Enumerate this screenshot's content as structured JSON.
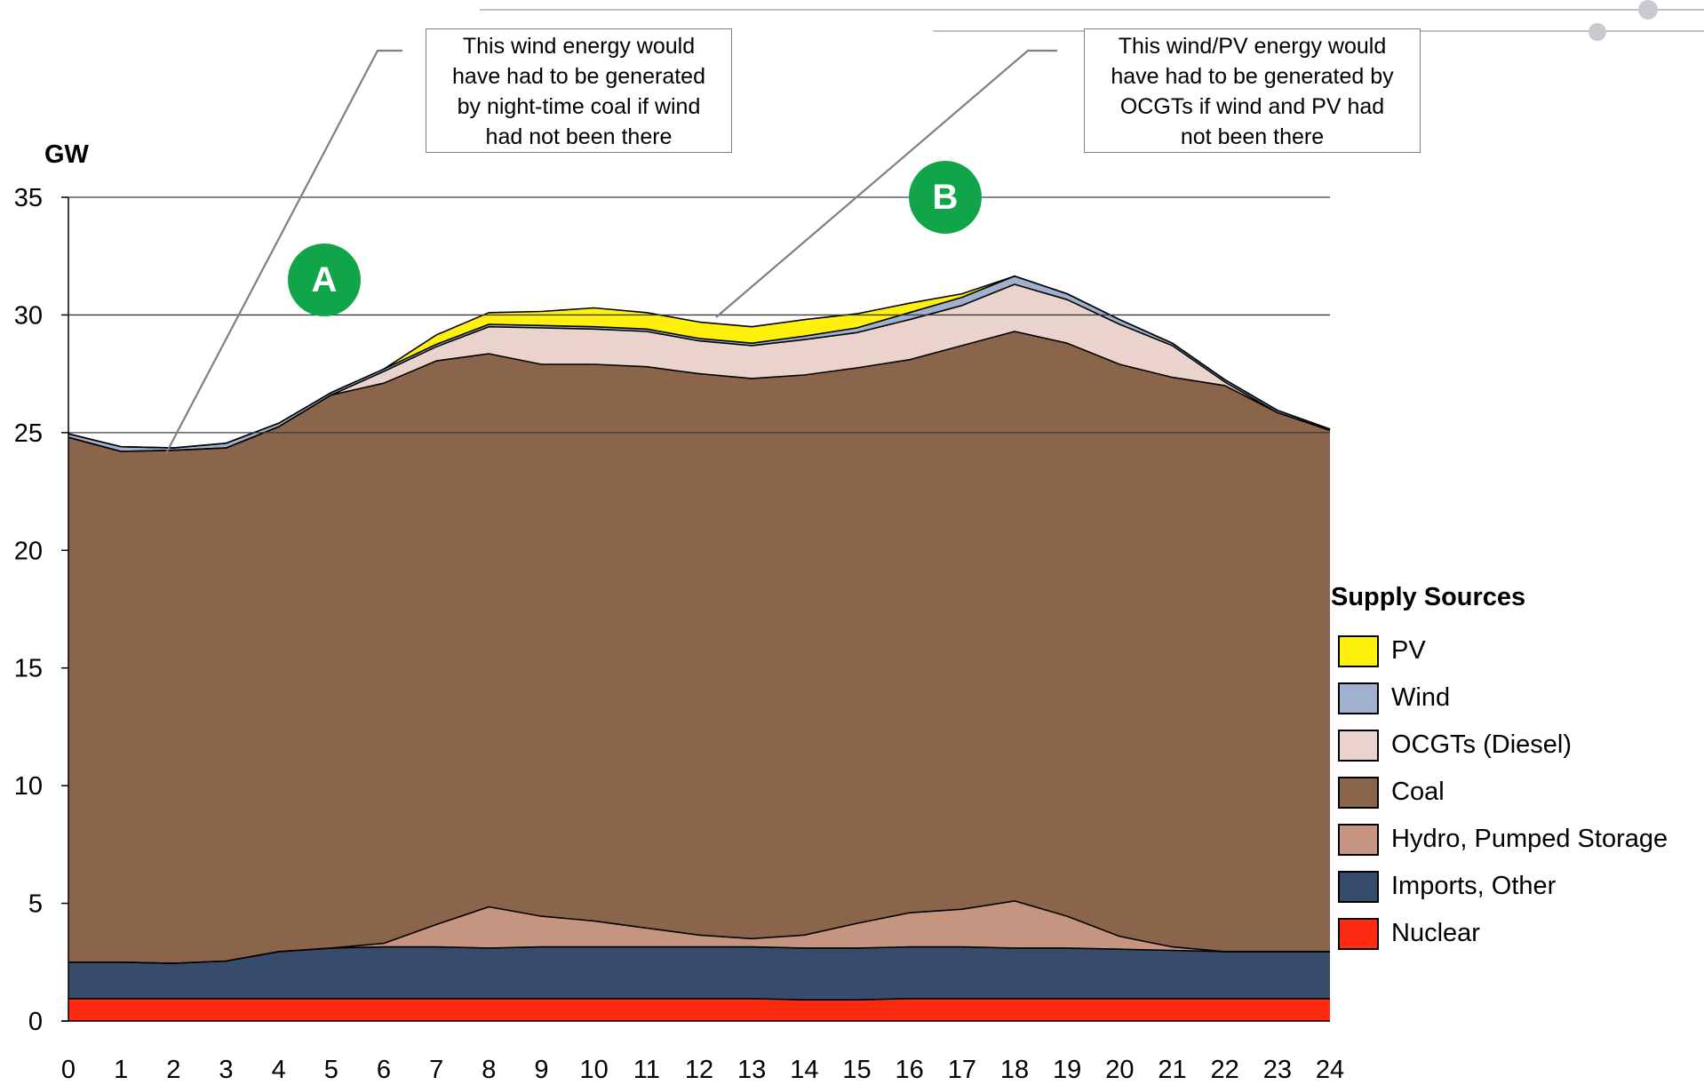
{
  "chart_data": {
    "type": "area",
    "stacked": true,
    "y_unit_label": "GW",
    "xlabel": "",
    "ylabel": "",
    "x": [
      0,
      1,
      2,
      3,
      4,
      5,
      6,
      7,
      8,
      9,
      10,
      11,
      12,
      13,
      14,
      15,
      16,
      17,
      18,
      19,
      20,
      21,
      22,
      23,
      24
    ],
    "x_tick_labels": [
      "0",
      "1",
      "2",
      "3",
      "4",
      "5",
      "6",
      "7",
      "8",
      "9",
      "10",
      "11",
      "12",
      "13",
      "14",
      "15",
      "16",
      "17",
      "18",
      "19",
      "20",
      "21",
      "22",
      "23",
      "24"
    ],
    "ylim": [
      0,
      35
    ],
    "y_ticks": [
      0,
      5,
      10,
      15,
      20,
      25,
      30,
      35
    ],
    "y_tick_labels": [
      "0",
      "5",
      "10",
      "15",
      "20",
      "25",
      "30",
      "35"
    ],
    "grid": "horizontal at 25, 30, 35",
    "legend_title": "Supply Sources",
    "legend_position": "right",
    "series": [
      {
        "name": "Nuclear",
        "color": "#ff2a12",
        "values": [
          0.95,
          0.95,
          0.95,
          0.95,
          0.95,
          0.95,
          0.95,
          0.95,
          0.95,
          0.95,
          0.95,
          0.95,
          0.95,
          0.95,
          0.9,
          0.9,
          0.95,
          0.95,
          0.95,
          0.95,
          0.95,
          0.95,
          0.95,
          0.95,
          0.95
        ]
      },
      {
        "name": "Imports, Other",
        "color": "#374c6b",
        "values": [
          1.55,
          1.55,
          1.5,
          1.6,
          2.0,
          2.15,
          2.2,
          2.2,
          2.15,
          2.2,
          2.2,
          2.2,
          2.2,
          2.2,
          2.2,
          2.2,
          2.2,
          2.2,
          2.15,
          2.15,
          2.1,
          2.05,
          2.0,
          2.0,
          2.0
        ]
      },
      {
        "name": "Hydro, Pumped Storage",
        "color": "#c69582",
        "values": [
          0,
          0,
          0,
          0,
          0,
          0,
          0.15,
          0.95,
          1.75,
          1.3,
          1.1,
          0.8,
          0.5,
          0.35,
          0.55,
          1.05,
          1.45,
          1.6,
          2.0,
          1.35,
          0.55,
          0.15,
          0,
          0,
          0
        ]
      },
      {
        "name": "Coal",
        "color": "#8b654b",
        "values": [
          22.3,
          21.7,
          21.8,
          21.8,
          22.3,
          23.5,
          23.8,
          23.95,
          23.5,
          23.45,
          23.65,
          23.85,
          23.85,
          23.8,
          23.8,
          23.6,
          23.5,
          23.95,
          24.2,
          24.35,
          24.3,
          24.2,
          24.05,
          22.9,
          22.15
        ]
      },
      {
        "name": "OCGTs (Diesel)",
        "color": "#ead3cc",
        "values": [
          0,
          0,
          0,
          0,
          0,
          0,
          0.5,
          0.6,
          1.15,
          1.55,
          1.5,
          1.5,
          1.4,
          1.4,
          1.5,
          1.5,
          1.7,
          1.7,
          2.0,
          1.85,
          1.7,
          1.35,
          0.15,
          0,
          0
        ]
      },
      {
        "name": "Wind",
        "color": "#9fb1ce",
        "values": [
          0.15,
          0.2,
          0.1,
          0.2,
          0.15,
          0.1,
          0.1,
          0.1,
          0.1,
          0.1,
          0.1,
          0.1,
          0.1,
          0.1,
          0.15,
          0.2,
          0.3,
          0.35,
          0.35,
          0.25,
          0.2,
          0.1,
          0.1,
          0.1,
          0.05
        ]
      },
      {
        "name": "PV",
        "color": "#fff10c",
        "values": [
          0,
          0,
          0,
          0,
          0,
          0,
          0,
          0.4,
          0.5,
          0.6,
          0.8,
          0.7,
          0.7,
          0.7,
          0.7,
          0.6,
          0.4,
          0.15,
          0,
          0,
          0,
          0,
          0,
          0,
          0
        ]
      }
    ],
    "annotations": [
      {
        "label": "A",
        "color": "#11a54a"
      },
      {
        "label": "B",
        "color": "#11a54a"
      }
    ]
  },
  "callouts": [
    {
      "lines": [
        "This wind energy would",
        "have had to be generated",
        "by night-time coal if wind",
        "had not been there"
      ]
    },
    {
      "lines": [
        "This wind/PV energy would",
        "have had to be generated by",
        "OCGTs if wind and PV had",
        "not been there"
      ]
    }
  ],
  "legend_items": [
    {
      "label": "PV",
      "color": "#fff10c"
    },
    {
      "label": "Wind",
      "color": "#9fb1ce"
    },
    {
      "label": "OCGTs (Diesel)",
      "color": "#ead3cc"
    },
    {
      "label": "Coal",
      "color": "#8b654b"
    },
    {
      "label": "Hydro, Pumped Storage",
      "color": "#c69582"
    },
    {
      "label": "Imports, Other",
      "color": "#374c6b"
    },
    {
      "label": "Nuclear",
      "color": "#ff2a12"
    }
  ]
}
